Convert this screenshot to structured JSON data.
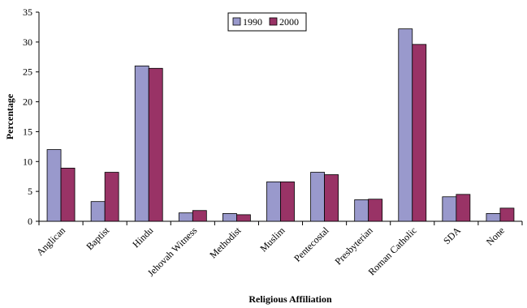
{
  "chart_data": {
    "type": "bar",
    "title": "",
    "xlabel": "Religious Affiliation",
    "ylabel": "Percentage",
    "ylim": [
      0,
      35
    ],
    "yticks": [
      0,
      5,
      10,
      15,
      20,
      25,
      30,
      35
    ],
    "grid": false,
    "legend_position": "top-center",
    "categories": [
      "Anglican",
      "Baptist",
      "Hindu",
      "Jehovah Witness",
      "Methodist",
      "Muslim",
      "Pentecostal",
      "Presbyterian",
      "Roman Catholic",
      "SDA",
      "None"
    ],
    "series": [
      {
        "name": "1990",
        "color": "#9999CC",
        "values": [
          12.0,
          3.3,
          26.0,
          1.4,
          1.3,
          6.6,
          8.2,
          3.6,
          32.2,
          4.1,
          1.3
        ]
      },
      {
        "name": "2000",
        "color": "#993366",
        "values": [
          8.9,
          8.2,
          25.6,
          1.8,
          1.1,
          6.6,
          7.8,
          3.7,
          29.6,
          4.5,
          2.2
        ]
      }
    ]
  }
}
